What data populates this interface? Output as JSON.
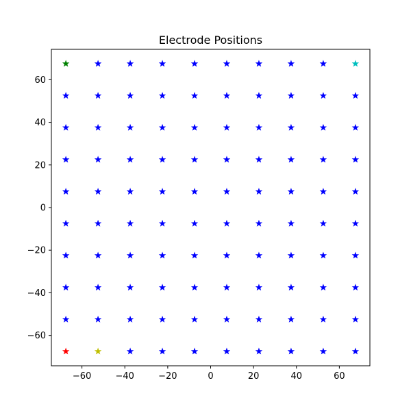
{
  "chart_data": {
    "type": "scatter",
    "title": "Electrode Positions",
    "xlabel": "",
    "ylabel": "",
    "xlim": [
      -74.25,
      74.25
    ],
    "ylim": [
      -74.25,
      74.25
    ],
    "xticks": [
      -60,
      -40,
      -20,
      0,
      20,
      40,
      60
    ],
    "yticks": [
      -60,
      -40,
      -20,
      0,
      20,
      40,
      60
    ],
    "xtick_labels": [
      "−60",
      "−40",
      "−20",
      "0",
      "20",
      "40",
      "60"
    ],
    "ytick_labels": [
      "−60",
      "−40",
      "−20",
      "0",
      "20",
      "40",
      "60"
    ],
    "grid": false,
    "marker": "star",
    "default_color": "#0000ff",
    "x": [
      -67.5,
      -52.5,
      -37.5,
      -22.5,
      -7.5,
      7.5,
      22.5,
      37.5,
      52.5,
      67.5
    ],
    "y": [
      -67.5,
      -52.5,
      -37.5,
      -22.5,
      -7.5,
      7.5,
      22.5,
      37.5,
      52.5,
      67.5
    ],
    "highlighted_points": [
      {
        "x": -67.5,
        "y": 67.5,
        "color": "#008000"
      },
      {
        "x": 67.5,
        "y": 67.5,
        "color": "#00bfbf"
      },
      {
        "x": -67.5,
        "y": -67.5,
        "color": "#ff0000"
      },
      {
        "x": -52.5,
        "y": -67.5,
        "color": "#bfbf00"
      }
    ]
  }
}
